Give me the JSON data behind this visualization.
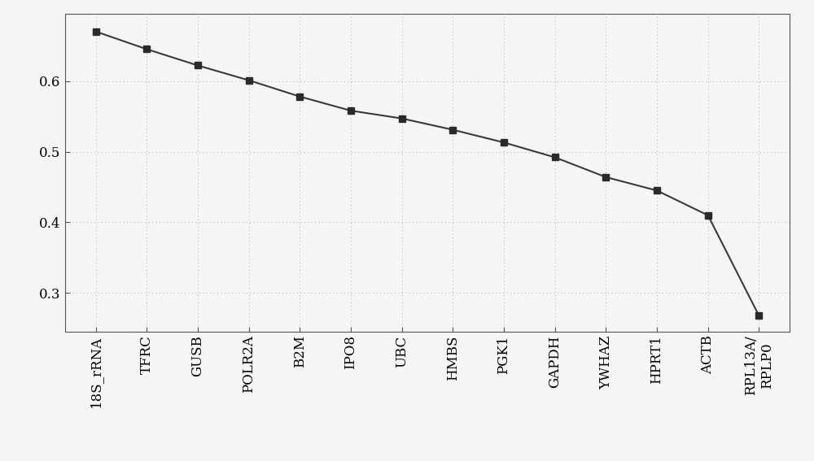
{
  "categories": [
    "18S_rRNA",
    "TFRC",
    "GUSB",
    "POLR2A",
    "B2M",
    "IPO8",
    "UBC",
    "HMBS",
    "PGK1",
    "GAPDH",
    "YWHAZ",
    "HPRT1",
    "ACTB",
    "RPL13A/\nRPLP0"
  ],
  "values": [
    0.67,
    0.645,
    0.622,
    0.601,
    0.578,
    0.558,
    0.547,
    0.531,
    0.513,
    0.492,
    0.464,
    0.445,
    0.41,
    0.268
  ],
  "line_color": "#3a3a3a",
  "marker_color": "#2a2a2a",
  "marker": "s",
  "background_color": "#f5f5f5",
  "grid_color": "#bbbbbb",
  "ylim": [
    0.245,
    0.695
  ],
  "yticks": [
    0.3,
    0.4,
    0.5,
    0.6
  ],
  "xlabel": "",
  "ylabel": "",
  "title": "",
  "tick_fontsize": 12,
  "markersize": 6,
  "linewidth": 1.5
}
